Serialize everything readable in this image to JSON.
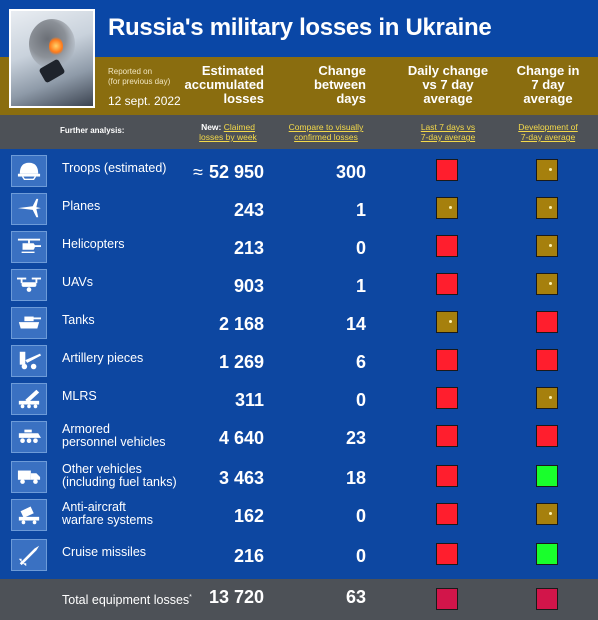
{
  "title": "Russia's military losses in Ukraine",
  "reported": {
    "line1": "Reported on",
    "line2": "(for previous day)",
    "date": "12 sept. 2022"
  },
  "columns": {
    "estimated_l1": "Estimated",
    "estimated_l2": "accumulated",
    "estimated_l3": "losses",
    "change_l1": "Change",
    "change_l2": "between",
    "change_l3": "days",
    "daily_l1": "Daily change",
    "daily_l2": "vs 7 day",
    "daily_l3": "average",
    "seven_l1": "Change in",
    "seven_l2": "7 day",
    "seven_l3": "average"
  },
  "subheader": {
    "further": "Further analysis:",
    "new_prefix": "New:",
    "link1_a": "Claimed",
    "link1_b": "losses by week",
    "link2_a": "Compare to visually",
    "link2_b": "confirmed losses",
    "link3_a": "Last 7 days vs",
    "link3_b": "7-day average",
    "link4_a": "Development of",
    "link4_b": "7-day average"
  },
  "rows": [
    {
      "icon": "helmet-icon",
      "label1": "Troops (estimated)",
      "label2": "",
      "approx": "≈",
      "value": "52 950",
      "change": "300",
      "daily": "red",
      "seven": "gold-dot"
    },
    {
      "icon": "plane-icon",
      "label1": "Planes",
      "label2": "",
      "approx": "",
      "value": "243",
      "change": "1",
      "daily": "gold-dot",
      "seven": "gold-dot"
    },
    {
      "icon": "helicopter-icon",
      "label1": "Helicopters",
      "label2": "",
      "approx": "",
      "value": "213",
      "change": "0",
      "daily": "red",
      "seven": "gold-dot"
    },
    {
      "icon": "drone-icon",
      "label1": "UAVs",
      "label2": "",
      "approx": "",
      "value": "903",
      "change": "1",
      "daily": "red",
      "seven": "gold-dot"
    },
    {
      "icon": "tank-icon",
      "label1": "Tanks",
      "label2": "",
      "approx": "",
      "value": "2 168",
      "change": "14",
      "daily": "gold-dot",
      "seven": "red"
    },
    {
      "icon": "artillery-icon",
      "label1": "Artillery pieces",
      "label2": "",
      "approx": "",
      "value": "1 269",
      "change": "6",
      "daily": "red",
      "seven": "red"
    },
    {
      "icon": "mlrs-icon",
      "label1": "MLRS",
      "label2": "",
      "approx": "",
      "value": "311",
      "change": "0",
      "daily": "red",
      "seven": "gold-dot"
    },
    {
      "icon": "apc-icon",
      "label1": "Armored",
      "label2": "personnel vehicles",
      "approx": "",
      "value": "4 640",
      "change": "23",
      "daily": "red",
      "seven": "red"
    },
    {
      "icon": "truck-icon",
      "label1": "Other vehicles",
      "label2": "(including fuel tanks)",
      "approx": "",
      "value": "3 463",
      "change": "18",
      "daily": "red",
      "seven": "green"
    },
    {
      "icon": "anti-aircraft-icon",
      "label1": "Anti-aircraft",
      "label2": "warfare systems",
      "approx": "",
      "value": "162",
      "change": "0",
      "daily": "red",
      "seven": "gold-dot"
    },
    {
      "icon": "missile-icon",
      "label1": "Cruise missiles",
      "label2": "",
      "approx": "",
      "value": "216",
      "change": "0",
      "daily": "red",
      "seven": "green"
    }
  ],
  "total": {
    "label": "Total equipment losses",
    "mark": "*",
    "value": "13 720",
    "change": "63",
    "daily": "maroon",
    "seven": "maroon"
  },
  "colors": {
    "background": "#0d47a1",
    "band": "#8a6d0f",
    "bar": "#4d5157",
    "red": "#ff1e2d",
    "gold": "#a6800d",
    "green": "#19ff2c",
    "maroon": "#d2154a",
    "link": "#f4d94a"
  }
}
